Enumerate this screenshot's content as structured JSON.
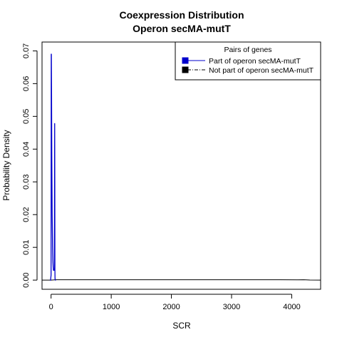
{
  "chart_data": {
    "type": "line",
    "title": "Coexpression Distribution",
    "subtitle": "Operon secMA-mutT",
    "xlabel": "SCR",
    "ylabel": "Probability Density",
    "xlim": [
      -150,
      4480
    ],
    "ylim": [
      -0.0028,
      0.0727
    ],
    "x_ticks": [
      0,
      1000,
      2000,
      3000,
      4000
    ],
    "x_tick_labels": [
      "0",
      "1000",
      "2000",
      "3000",
      "4000"
    ],
    "y_ticks": [
      0.0,
      0.01,
      0.02,
      0.03,
      0.04,
      0.05,
      0.06,
      0.07
    ],
    "y_tick_labels": [
      "0.00",
      "0.01",
      "0.02",
      "0.03",
      "0.04",
      "0.05",
      "0.06",
      "0.07"
    ],
    "grid": false,
    "legend": {
      "title": "Pairs of genes",
      "position": "top-right",
      "entries": [
        {
          "label": "Part of operon secMA-mutT",
          "color": "#0000cc",
          "line": "solid"
        },
        {
          "label": "Not part of operon secMA-mutT",
          "color": "#000000",
          "line": "dashdot"
        }
      ]
    },
    "series": [
      {
        "name": "Part of operon secMA-mutT",
        "color": "#0000cc",
        "x": [
          -20,
          -8,
          0,
          3,
          5,
          8,
          12,
          18,
          25,
          30,
          35,
          40,
          45,
          50,
          55,
          58,
          60,
          62,
          64,
          66,
          70,
          80
        ],
        "y": [
          0.0,
          0.0,
          0.0015,
          0.069,
          0.069,
          0.058,
          0.038,
          0.02,
          0.01,
          0.006,
          0.004,
          0.003,
          0.003,
          0.003,
          0.0035,
          0.03,
          0.0478,
          0.03,
          0.003,
          0.0005,
          0.0,
          0.0
        ]
      },
      {
        "name": "Not part of operon secMA-mutT",
        "color": "#000000",
        "x": [
          -150,
          0,
          80,
          200,
          1000,
          2000,
          3000,
          3800,
          4100,
          4200,
          4300,
          4480
        ],
        "y": [
          0.0,
          0.0,
          0.0001,
          0.00012,
          0.00012,
          0.0001,
          0.0001,
          0.0001,
          8e-05,
          0.0001,
          3e-05,
          0.0
        ]
      }
    ]
  }
}
